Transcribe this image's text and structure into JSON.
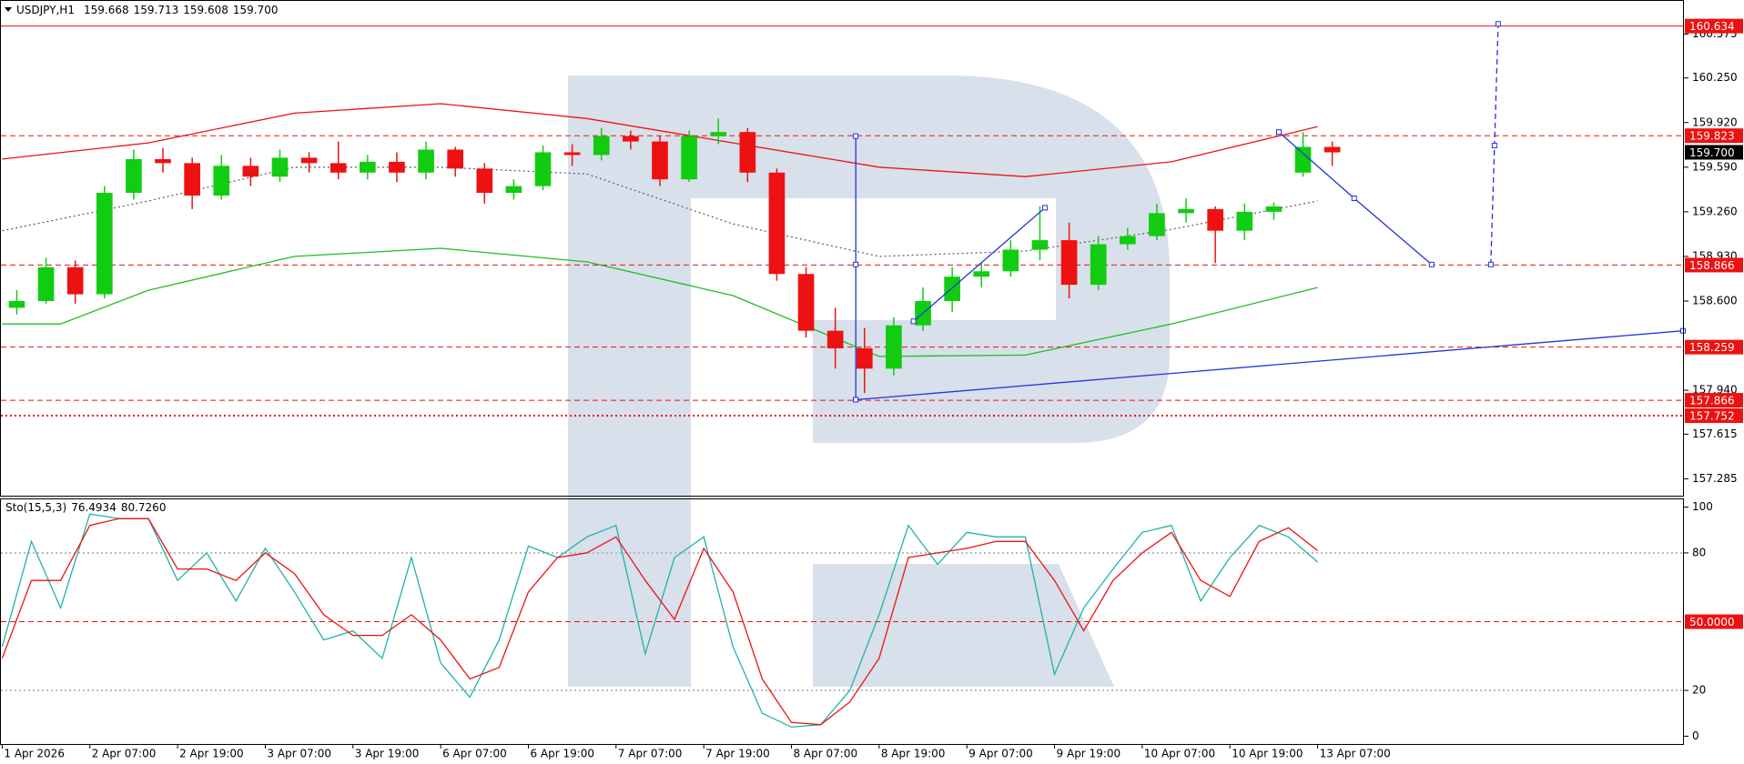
{
  "chart_data": [
    {
      "type": "candlestick",
      "symbol": "USDJPY,H1",
      "header_values": [
        159.668,
        159.713,
        159.608,
        {
          "value": 159.7,
          "label": "159.700"
        }
      ],
      "xlim": [
        0,
        230
      ],
      "ylim": [
        157.16,
        160.82
      ],
      "yticks": [
        157.285,
        157.615,
        {
          "value": 157.94,
          "label": "157.940"
        },
        {
          "value": 158.6,
          "label": "158.600"
        },
        {
          "value": 158.93,
          "label": "158.930"
        },
        {
          "value": 159.26,
          "label": "159.260"
        },
        {
          "value": 159.59,
          "label": "159.590"
        },
        {
          "value": 159.92,
          "label": "159.920"
        },
        {
          "value": 160.25,
          "label": "160.250"
        },
        160.575
      ],
      "up_color": "#11cc11",
      "down_color": "#ee1111",
      "x": [
        0,
        4,
        8,
        12,
        16,
        20,
        24,
        28,
        32,
        36,
        40,
        44,
        48,
        52,
        56,
        60,
        64,
        68,
        72,
        76,
        80,
        84,
        88,
        92,
        96,
        100,
        104,
        108,
        112,
        116,
        120,
        124,
        128,
        132,
        136,
        140,
        144,
        148,
        152,
        156,
        160,
        164,
        168,
        172,
        176,
        180
      ],
      "candles": [
        [
          158.55,
          158.68,
          158.5,
          158.6
        ],
        [
          158.6,
          158.92,
          158.58,
          158.85
        ],
        [
          158.85,
          158.9,
          158.58,
          158.65
        ],
        [
          158.65,
          159.45,
          158.62,
          159.4
        ],
        [
          159.4,
          159.72,
          159.35,
          159.65
        ],
        [
          159.65,
          159.73,
          159.55,
          159.62
        ],
        [
          159.62,
          159.66,
          159.28,
          159.38
        ],
        [
          159.38,
          159.68,
          159.35,
          159.6
        ],
        [
          159.6,
          159.66,
          159.45,
          159.52
        ],
        [
          159.52,
          159.72,
          159.48,
          159.66
        ],
        [
          159.66,
          159.7,
          159.55,
          159.62
        ],
        [
          159.62,
          159.78,
          159.5,
          159.55
        ],
        [
          159.55,
          159.68,
          159.5,
          159.63
        ],
        [
          159.63,
          159.7,
          159.48,
          159.55
        ],
        [
          159.55,
          159.78,
          159.5,
          159.72
        ],
        [
          159.72,
          159.74,
          159.52,
          159.58
        ],
        [
          159.58,
          159.62,
          159.32,
          159.4
        ],
        [
          159.4,
          159.5,
          159.35,
          159.45
        ],
        [
          159.45,
          159.75,
          159.42,
          159.7
        ],
        [
          159.7,
          159.76,
          159.6,
          159.68
        ],
        [
          159.68,
          159.88,
          159.64,
          159.82
        ],
        [
          159.82,
          159.86,
          159.72,
          159.78
        ],
        [
          159.78,
          159.82,
          159.45,
          159.5
        ],
        [
          159.5,
          159.86,
          159.48,
          159.82
        ],
        [
          159.82,
          159.95,
          159.76,
          159.85
        ],
        [
          159.85,
          159.88,
          159.48,
          159.55
        ],
        [
          159.55,
          159.58,
          158.75,
          158.8
        ],
        [
          158.8,
          158.85,
          158.33,
          158.38
        ],
        [
          158.38,
          158.55,
          158.1,
          158.25
        ],
        [
          158.25,
          158.4,
          157.92,
          158.1
        ],
        [
          158.1,
          158.48,
          158.05,
          158.42
        ],
        [
          158.42,
          158.7,
          158.38,
          158.6
        ],
        [
          158.6,
          158.85,
          158.52,
          158.78
        ],
        [
          158.78,
          158.88,
          158.7,
          158.82
        ],
        [
          158.82,
          159.05,
          158.78,
          158.98
        ],
        [
          158.98,
          159.3,
          158.9,
          159.05
        ],
        [
          159.05,
          159.18,
          158.62,
          158.72
        ],
        [
          158.72,
          159.08,
          158.68,
          159.02
        ],
        [
          159.02,
          159.14,
          158.98,
          159.08
        ],
        [
          159.08,
          159.32,
          159.05,
          159.25
        ],
        [
          159.25,
          159.36,
          159.18,
          159.28
        ],
        [
          159.28,
          159.3,
          158.88,
          159.12
        ],
        [
          159.12,
          159.32,
          159.05,
          159.26
        ],
        [
          159.26,
          159.33,
          159.2,
          159.3
        ],
        [
          159.55,
          159.85,
          159.52,
          159.74
        ],
        [
          159.74,
          159.78,
          159.6,
          159.7
        ]
      ],
      "series": [
        {
          "color": "#ee1111",
          "style": "solid",
          "x": [
            0,
            20,
            40,
            60,
            80,
            100,
            120,
            140,
            160,
            180
          ],
          "values": [
            159.65,
            159.77,
            159.99,
            160.06,
            159.95,
            159.77,
            159.59,
            159.52,
            159.63,
            159.89
          ]
        },
        {
          "color": "#666666",
          "style": "dotted",
          "x": [
            0,
            20,
            40,
            60,
            80,
            100,
            120,
            140,
            160,
            180
          ],
          "values": [
            159.12,
            159.34,
            159.59,
            159.59,
            159.54,
            159.17,
            158.93,
            158.97,
            159.13,
            159.34
          ]
        },
        {
          "color": "#22bb22",
          "style": "solid",
          "x": [
            0,
            8,
            20,
            40,
            60,
            80,
            100,
            120,
            140,
            160,
            180
          ],
          "values": [
            158.43,
            158.43,
            158.68,
            158.93,
            158.99,
            158.89,
            158.64,
            158.19,
            158.2,
            158.43,
            158.7
          ]
        }
      ],
      "levels": [
        {
          "value": 160.634,
          "color": "#ee1111",
          "style": "solid",
          "tagged": true
        },
        {
          "value": 159.823,
          "color": "#ee1111",
          "style": "dashed",
          "tagged": true
        },
        {
          "value": 158.866,
          "color": "#ee1111",
          "style": "dashed",
          "tagged": true
        },
        {
          "value": 158.259,
          "color": "#ee1111",
          "style": "dashed",
          "tagged": true
        },
        {
          "value": 157.866,
          "color": "#ee1111",
          "style": "dashed",
          "tagged": true
        },
        {
          "value": 157.752,
          "color": "#ee1111",
          "style": "dotted",
          "tagged": true
        }
      ],
      "current": {
        "value": 159.7,
        "label": "159.700"
      },
      "drawings": [
        {
          "color": "#2233dd",
          "style": "solid",
          "x": [
            116.8,
            230
          ],
          "values": [
            157.87,
            158.38
          ]
        },
        {
          "color": "#2233dd",
          "style": "solid",
          "x": [
            116.8,
            116.8,
            116.8
          ],
          "values": [
            157.87,
            158.87,
            159.82
          ]
        },
        {
          "color": "#2233dd",
          "style": "solid",
          "x": [
            124.7,
            142.7
          ],
          "values": [
            158.45,
            159.29
          ]
        },
        {
          "color": "#2233dd",
          "style": "solid",
          "x": [
            174.7,
            185,
            195.6
          ],
          "values": [
            159.85,
            159.36,
            158.87
          ]
        },
        {
          "color": "#2233dd",
          "style": "dashed",
          "x": [
            203.7,
            204.2,
            204.7
          ],
          "values": [
            158.87,
            159.75,
            160.65
          ]
        }
      ]
    },
    {
      "type": "line",
      "label": "Sto(15,5,3)",
      "header_values": [
        76.4934,
        {
          "value": 80.726,
          "label": "80.7260"
        }
      ],
      "xlim": [
        0,
        230
      ],
      "ylim": [
        -3.4,
        103.4
      ],
      "yticks": [
        0,
        20,
        80,
        100
      ],
      "xticks": [
        {
          "value": 0,
          "label": "1 Apr 2026"
        },
        {
          "value": 12,
          "label": "2 Apr 07:00"
        },
        {
          "value": 24,
          "label": "2 Apr 19:00"
        },
        {
          "value": 36,
          "label": "3 Apr 07:00"
        },
        {
          "value": 48,
          "label": "3 Apr 19:00"
        },
        {
          "value": 60,
          "label": "6 Apr 07:00"
        },
        {
          "value": 72,
          "label": "6 Apr 19:00"
        },
        {
          "value": 84,
          "label": "7 Apr 07:00"
        },
        {
          "value": 96,
          "label": "7 Apr 19:00"
        },
        {
          "value": 108,
          "label": "8 Apr 07:00"
        },
        {
          "value": 120,
          "label": "8 Apr 19:00"
        },
        {
          "value": 132,
          "label": "9 Apr 07:00"
        },
        {
          "value": 144,
          "label": "9 Apr 19:00"
        },
        {
          "value": 156,
          "label": "10 Apr 07:00"
        },
        {
          "value": 168,
          "label": "10 Apr 19:00"
        },
        {
          "value": 180,
          "label": "13 Apr 07:00"
        }
      ],
      "x": [
        0,
        4,
        8,
        12,
        16,
        20,
        24,
        28,
        32,
        36,
        40,
        44,
        48,
        52,
        56,
        60,
        64,
        68,
        72,
        76,
        80,
        84,
        88,
        92,
        96,
        100,
        104,
        108,
        112,
        116,
        120,
        124,
        128,
        132,
        136,
        140,
        144,
        148,
        152,
        156,
        160,
        164,
        168,
        172,
        176,
        180
      ],
      "series": [
        {
          "color": "#20b2aa",
          "style": "solid",
          "values": [
            39,
            85,
            56,
            97,
            95,
            95,
            68,
            80,
            59,
            82,
            63,
            42,
            46,
            34,
            78,
            32,
            17,
            42,
            83,
            78,
            87,
            92,
            36,
            78,
            87,
            39,
            10,
            4,
            5,
            20,
            53,
            92,
            75,
            89,
            87,
            87,
            27,
            56,
            73,
            89,
            92,
            59,
            78,
            92,
            87,
            76
          ]
        },
        {
          "color": "#ee1111",
          "style": "solid",
          "values": [
            34,
            68,
            68,
            92,
            95,
            95,
            73,
            73,
            68,
            80,
            71,
            53,
            44,
            44,
            53,
            42,
            25,
            30,
            63,
            78,
            80,
            87,
            68,
            51,
            82,
            63,
            25,
            6,
            5,
            15,
            34,
            78,
            80,
            82,
            85,
            85,
            68,
            46,
            68,
            80,
            89,
            68,
            61,
            85,
            91,
            81
          ]
        }
      ],
      "levels": [
        {
          "value": 80,
          "color": "#bbbbbb",
          "style": "dotted"
        },
        {
          "value": 50,
          "label": "50.0000",
          "color": "#ee1111",
          "style": "dashed",
          "tagged": true
        },
        {
          "value": 20,
          "color": "#bbbbbb",
          "style": "dotted"
        }
      ]
    }
  ]
}
